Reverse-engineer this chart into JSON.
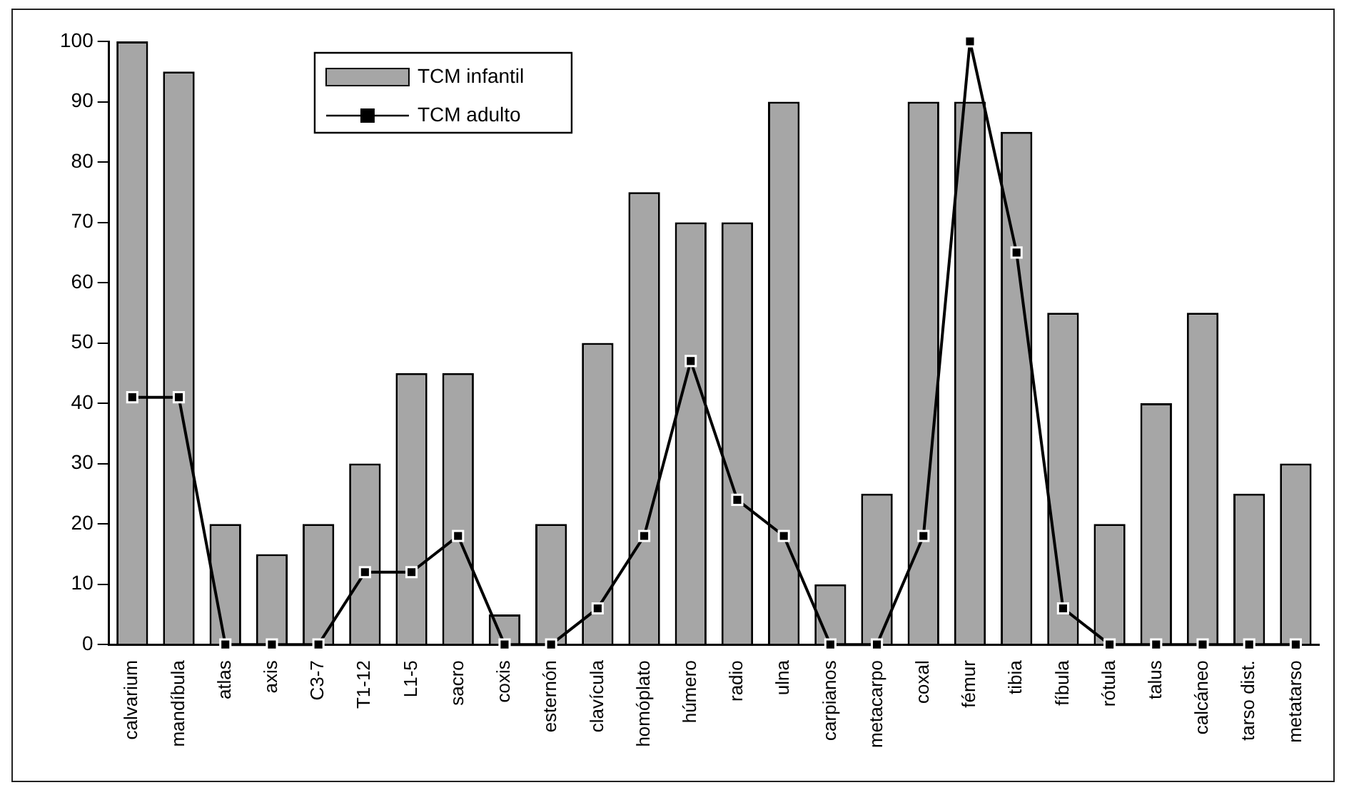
{
  "chart_data": {
    "type": "bar",
    "categories": [
      "calvarium",
      "mandíbula",
      "atlas",
      "axis",
      "C3-7",
      "T1-12",
      "L1-5",
      "sacro",
      "coxis",
      "esternón",
      "clavícula",
      "homóplato",
      "húmero",
      "radio",
      "ulna",
      "carpianos",
      "metacarpo",
      "coxal",
      "fémur",
      "tibia",
      "fíbula",
      "rótula",
      "talus",
      "calcáneo",
      "tarso dist.",
      "metatarso"
    ],
    "series": [
      {
        "name": "TCM infantil",
        "color": "#a6a6a6",
        "values": [
          100,
          95,
          20,
          15,
          20,
          30,
          45,
          45,
          5,
          20,
          50,
          75,
          70,
          70,
          90,
          10,
          25,
          90,
          90,
          85,
          55,
          20,
          40,
          55,
          25,
          30
        ]
      },
      {
        "name": "TCM adulto",
        "type": "line",
        "color": "#000000",
        "values": [
          41,
          41,
          0,
          0,
          0,
          12,
          12,
          18,
          0,
          0,
          6,
          18,
          47,
          24,
          18,
          0,
          0,
          18,
          100,
          65,
          6,
          0,
          0,
          0,
          0,
          0
        ]
      }
    ],
    "ylim": [
      0,
      100
    ],
    "yticks": [
      0,
      10,
      20,
      30,
      40,
      50,
      60,
      70,
      80,
      90,
      100
    ],
    "grid": false,
    "legend": "top left",
    "marker": "square",
    "line_style": "solid"
  }
}
